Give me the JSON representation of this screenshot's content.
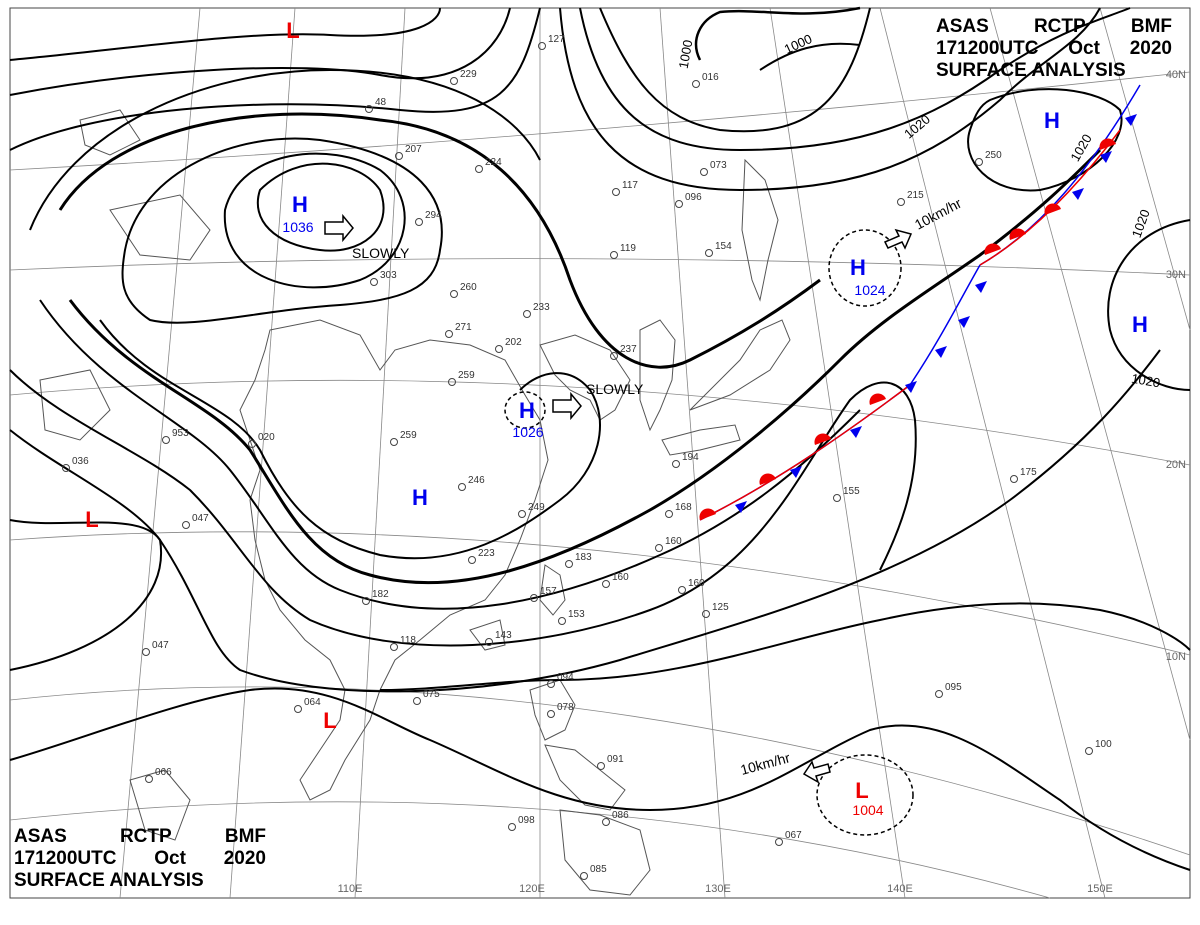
{
  "header": {
    "line1": [
      "ASAS",
      "RCTP",
      "BMF"
    ],
    "line2": [
      "171200UTC",
      "Oct",
      "2020"
    ],
    "line3": "SURFACE ANALYSIS"
  },
  "lat_labels": [
    "40N",
    "30N",
    "20N",
    "10N"
  ],
  "lon_labels": [
    "110E",
    "120E",
    "130E",
    "140E",
    "150E"
  ],
  "isobar_labels": [
    "1000",
    "1000",
    "1020",
    "1020",
    "1020",
    "1020"
  ],
  "pressure_systems": [
    {
      "type": "H",
      "value": "1036",
      "motion": "SLOWLY"
    },
    {
      "type": "H",
      "value": "1026",
      "motion": "SLOWLY"
    },
    {
      "type": "H",
      "value": "1024",
      "motion": "10km/hr"
    },
    {
      "type": "H",
      "value": ""
    },
    {
      "type": "H",
      "value": ""
    },
    {
      "type": "H",
      "value": ""
    },
    {
      "type": "L",
      "value": "1004",
      "motion": "10km/hr"
    },
    {
      "type": "L",
      "value": ""
    },
    {
      "type": "L",
      "value": ""
    },
    {
      "type": "L",
      "value": ""
    }
  ],
  "station_labels": [
    "127",
    "229",
    "48",
    "207",
    "224",
    "294",
    "303",
    "260",
    "271",
    "233",
    "202",
    "259",
    "237",
    "259",
    "246",
    "249",
    "223",
    "183",
    "153",
    "143",
    "157",
    "118",
    "182",
    "075",
    "064",
    "094",
    "078",
    "091",
    "086",
    "098",
    "085",
    "066",
    "047",
    "047",
    "036",
    "953",
    "020",
    "117",
    "096",
    "119",
    "154",
    "073",
    "215",
    "250",
    "155",
    "175",
    "160",
    "160",
    "168",
    "194",
    "125",
    "095",
    "100",
    "067",
    "016",
    "160"
  ],
  "colors": {
    "high": "#0000ee",
    "low": "#ee0000",
    "cold_front": "#0000ee",
    "warm_front": "#ee0000",
    "isobar": "#000000",
    "coast": "#555555",
    "grid": "#888888"
  }
}
